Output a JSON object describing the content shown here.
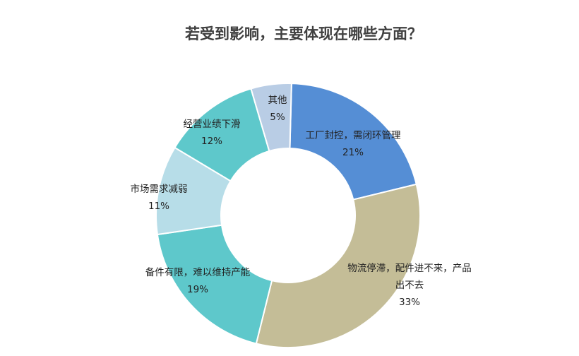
{
  "chart_data": {
    "type": "pie",
    "donut": true,
    "title": "若受到影响，主要体现在哪些方面？",
    "slices": [
      {
        "label": [
          "工厂封控，需闭环管理"
        ],
        "value": 21,
        "value_label": "21%",
        "color": "#558ED5"
      },
      {
        "label": [
          "物流停滞，配件进不来，产品",
          "出不去"
        ],
        "value": 33,
        "value_label": "33%",
        "color": "#C4BD97"
      },
      {
        "label": [
          "备件有限，难以维持产能"
        ],
        "value": 19,
        "value_label": "19%",
        "color": "#5EC8CB"
      },
      {
        "label": [
          "市场需求减弱"
        ],
        "value": 11,
        "value_label": "11%",
        "color": "#B7DDE8"
      },
      {
        "label": [
          "经营业绩下滑"
        ],
        "value": 12,
        "value_label": "12%",
        "color": "#5EC8CB"
      },
      {
        "label": [
          "其他"
        ],
        "value": 5,
        "value_label": "5%",
        "color": "#B9CDE5"
      }
    ],
    "start": "top",
    "direction": "clockwise",
    "legend": "none"
  }
}
